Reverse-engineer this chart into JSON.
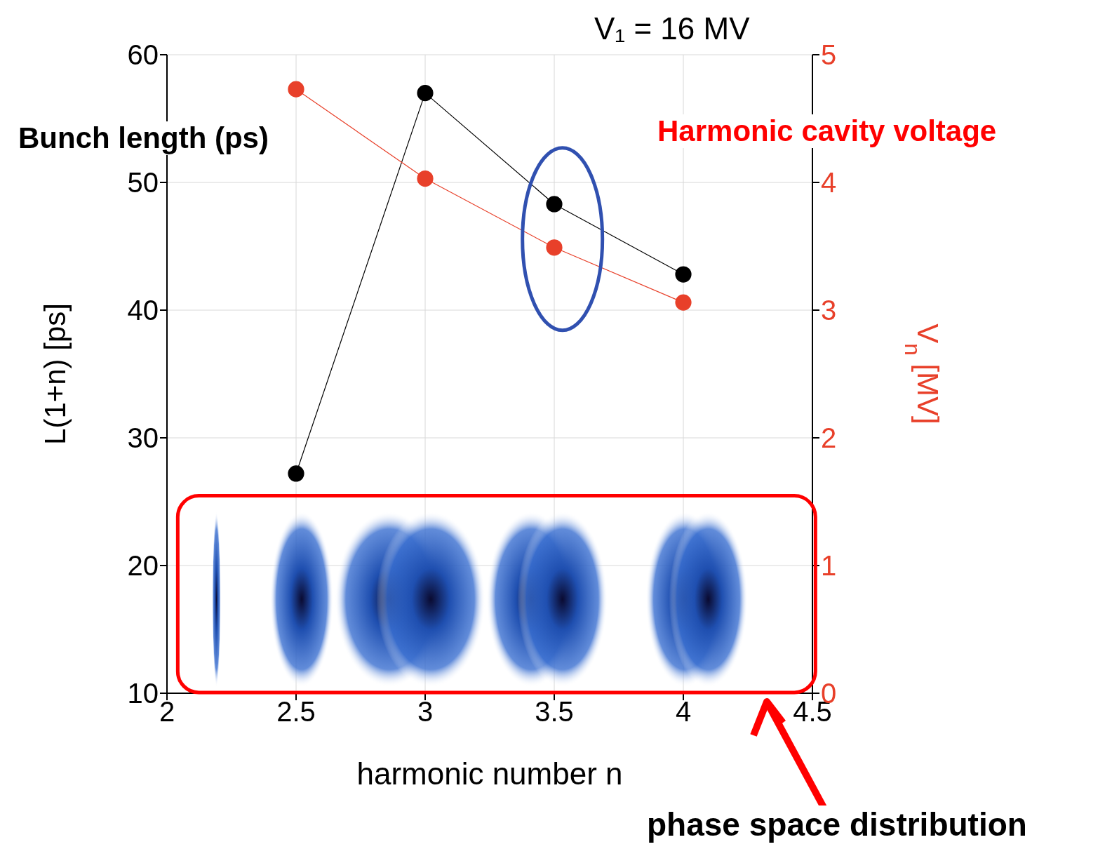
{
  "chart_data": {
    "type": "line",
    "xlabel": "harmonic number n",
    "ylabel": "L(1+n) [ps]",
    "y2label": "V$_{n}$ [MV]",
    "x": [
      2.5,
      3,
      3.5,
      4
    ],
    "series": [
      {
        "color": "#000000",
        "values": [
          27.2,
          57.0,
          48.3,
          42.8
        ]
      },
      {
        "color": "#e8402a",
        "values": [
          4.73,
          4.03,
          3.49,
          3.06
        ],
        "axis": "y2"
      }
    ],
    "xlim": [
      2,
      4.5
    ],
    "xticks": [
      2,
      2.5,
      3,
      3.5,
      4,
      4.5
    ],
    "ylim": [
      10,
      60
    ],
    "yticks": [
      10,
      20,
      30,
      40,
      50,
      60
    ],
    "y2lim": [
      0,
      5
    ],
    "y2ticks": [
      0,
      1,
      2,
      3,
      4,
      5
    ],
    "grid": true,
    "marker": "circle",
    "line_style": "solid",
    "annotations": [
      "V₁ = 16 MV",
      "Bunch length (ps)",
      "Harmonic cavity voltage",
      "phase space distribution"
    ]
  }
}
